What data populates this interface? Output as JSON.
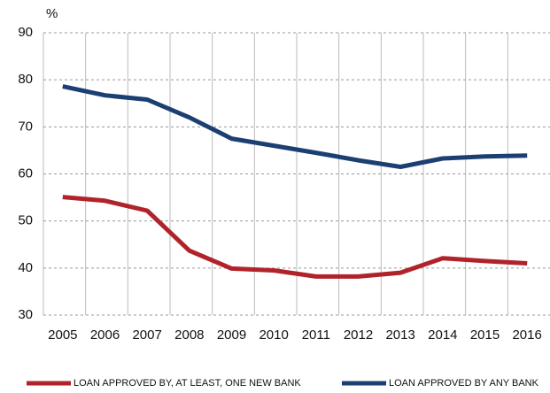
{
  "chart_data": {
    "type": "line",
    "y_label": "%",
    "categories": [
      "2005",
      "2006",
      "2007",
      "2008",
      "2009",
      "2010",
      "2011",
      "2012",
      "2013",
      "2014",
      "2015",
      "2016"
    ],
    "series": [
      {
        "name": "LOAN APPROVED BY, AT LEAST, ONE NEW BANK",
        "color": "#b1232b",
        "values": [
          55.1,
          54.3,
          52.2,
          43.7,
          39.9,
          39.5,
          38.2,
          38.2,
          39.0,
          42.1,
          41.5,
          41.0
        ]
      },
      {
        "name": "LOAN APPROVED BY ANY BANK",
        "color": "#1c3f73",
        "values": [
          78.6,
          76.7,
          75.8,
          72.0,
          67.5,
          66.0,
          64.5,
          62.9,
          61.5,
          63.3,
          63.7,
          63.9
        ]
      }
    ],
    "ylim": [
      30,
      90
    ],
    "yticks": [
      30,
      40,
      50,
      60,
      70,
      80,
      90
    ],
    "grid": true,
    "legend": "bottom"
  }
}
